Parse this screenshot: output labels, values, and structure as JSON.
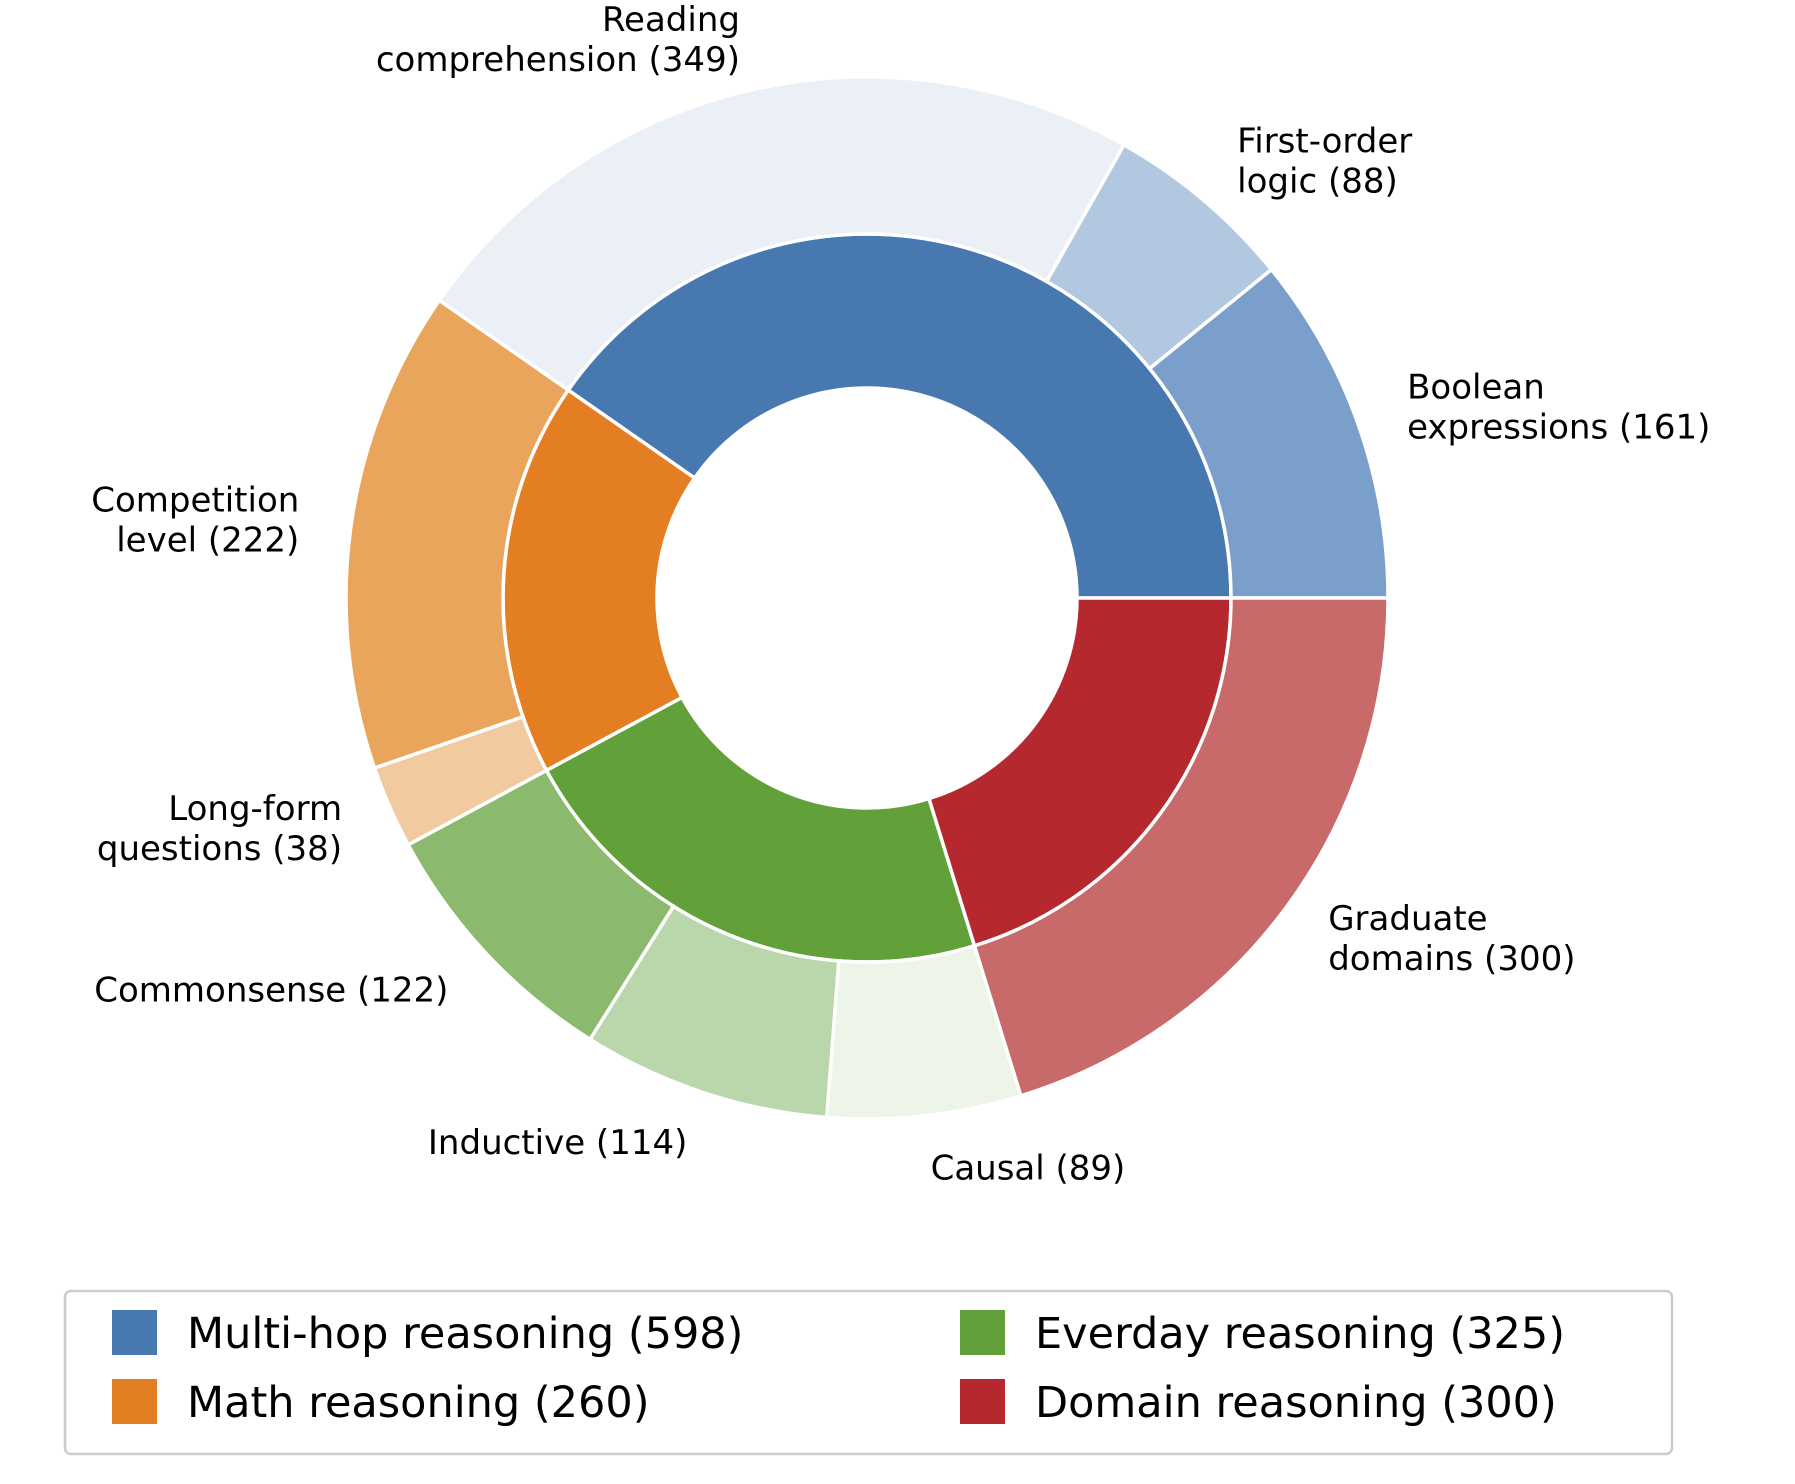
{
  "chart_data": {
    "type": "nested-donut",
    "start_angle_deg": 0,
    "direction": "counterclockwise",
    "inner": [
      {
        "name": "Multi-hop reasoning",
        "value": 598,
        "color": "#4878b0"
      },
      {
        "name": "Math reasoning",
        "value": 260,
        "color": "#e37e22"
      },
      {
        "name": "Everday reasoning",
        "value": 325,
        "color": "#62a03a"
      },
      {
        "name": "Domain reasoning",
        "value": 300,
        "color": "#b5292e"
      }
    ],
    "outer": [
      {
        "label": [
          "Boolean",
          "expressions (161)"
        ],
        "value": 161,
        "color": "#7a9fca"
      },
      {
        "label": [
          "First-order",
          "logic (88)"
        ],
        "value": 88,
        "color": "#b1c8e0"
      },
      {
        "label": [
          "Reading",
          "comprehension (349)"
        ],
        "value": 349,
        "color": "#eaf0f6"
      },
      {
        "label": [
          "Competition",
          "level (222)"
        ],
        "value": 222,
        "color": "#e9a55c"
      },
      {
        "label": [
          "Long-form",
          "questions (38)"
        ],
        "value": 38,
        "color": "#f2caa0"
      },
      {
        "label": [
          "Commonsense (122)"
        ],
        "value": 122,
        "color": "#8bba6f"
      },
      {
        "label": [
          "Inductive (114)"
        ],
        "value": 114,
        "color": "#b9d7ab"
      },
      {
        "label": [
          "Causal (89)"
        ],
        "value": 89,
        "color": "#edf4e8"
      },
      {
        "label": [
          "Graduate",
          "domains (300)"
        ],
        "value": 300,
        "color": "#c8696a"
      }
    ],
    "legend": {
      "placement": "bottom",
      "columns": 2,
      "entries": [
        "Multi-hop reasoning (598)",
        "Math reasoning (260)",
        "Everday reasoning (325)",
        "Domain reasoning (300)"
      ]
    }
  }
}
